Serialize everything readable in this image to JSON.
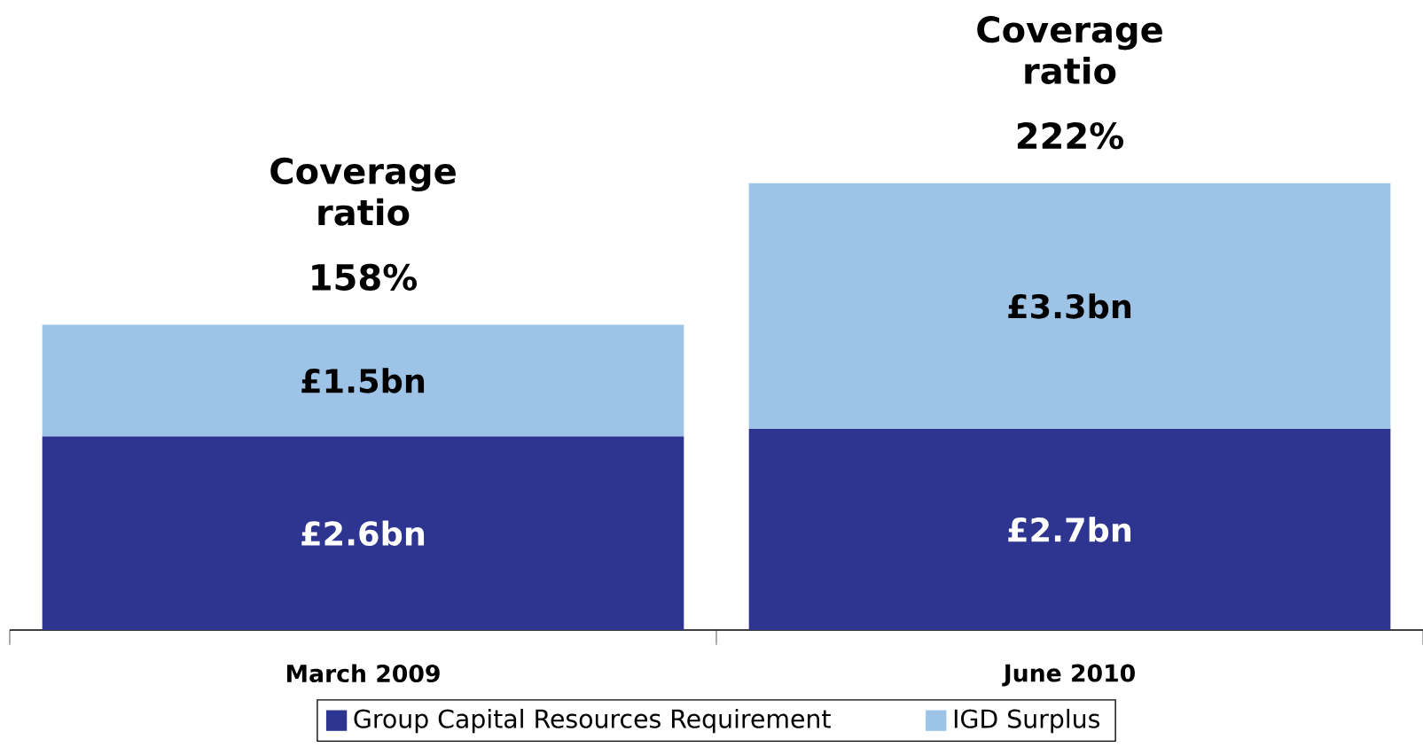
{
  "chart_data": {
    "type": "bar",
    "stacked": true,
    "legend": "bottom",
    "categories": [
      "March 2009",
      "June 2010"
    ],
    "series": [
      {
        "name": "Group Capital Resources Requirement",
        "color": "#2e3590",
        "values": [
          2.6,
          2.7
        ],
        "value_labels": [
          "£2.6bn",
          "£2.7bn"
        ]
      },
      {
        "name": "IGD Surplus",
        "color": "#9dc3e6",
        "values": [
          1.5,
          3.3
        ],
        "value_labels": [
          "£1.5bn",
          "£3.3bn"
        ]
      }
    ],
    "annotations": [
      "Coverage ratio",
      "158%",
      "Coverage ratio",
      "222%"
    ]
  }
}
